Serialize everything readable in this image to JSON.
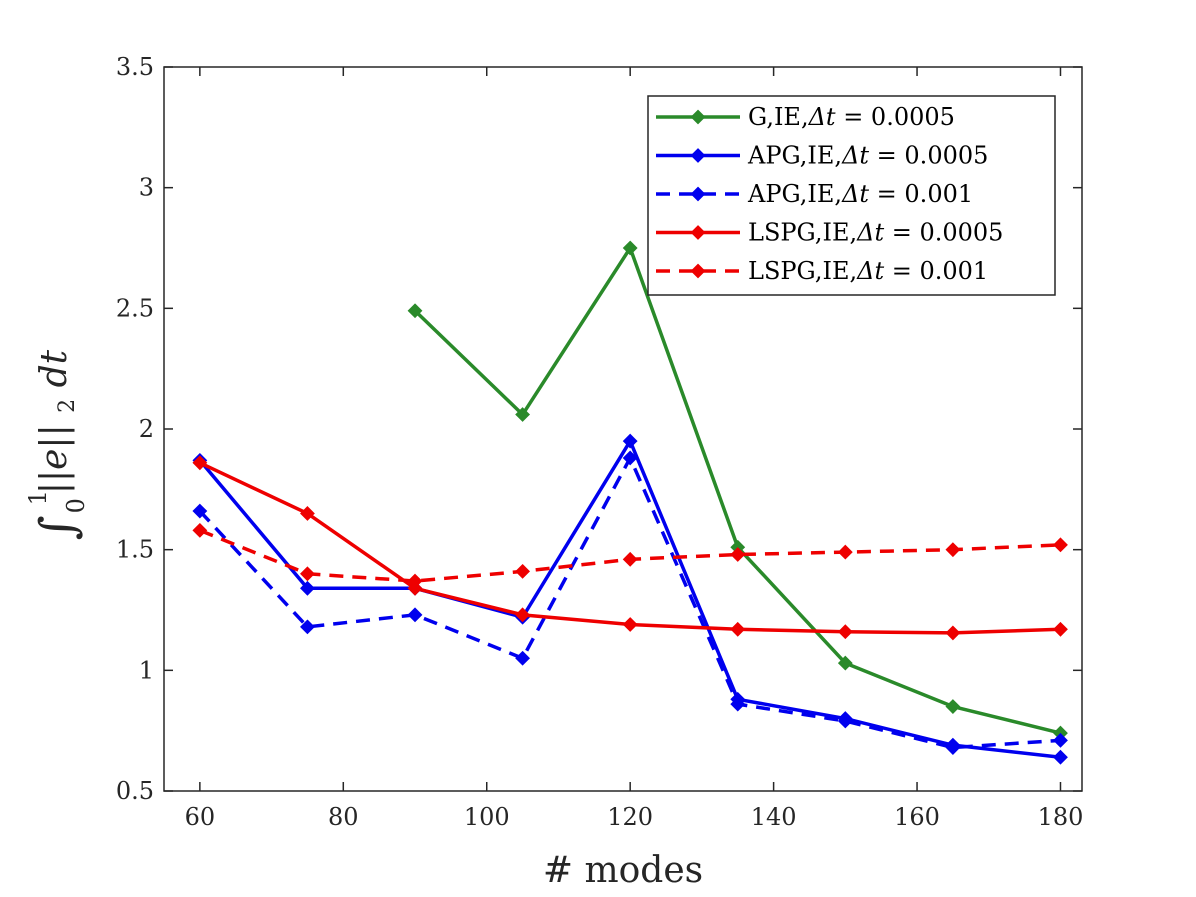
{
  "chart_data": {
    "type": "line",
    "title": "",
    "xlabel": "# modes",
    "ylabel": "∫₀¹ ||e||₂dt",
    "ylabel_parts": {
      "integral": "∫",
      "lower": "0",
      "upper": "1",
      "body": "||e||",
      "sub": "2",
      "tail": "dt"
    },
    "xlim": [
      55,
      183
    ],
    "ylim": [
      0.5,
      3.5
    ],
    "x_ticks": [
      60,
      80,
      100,
      120,
      140,
      160,
      180
    ],
    "y_ticks": [
      0.5,
      1,
      1.5,
      2,
      2.5,
      3,
      3.5
    ],
    "x_tick_labels": [
      "60",
      "80",
      "100",
      "120",
      "140",
      "160",
      "180"
    ],
    "y_tick_labels": [
      "0.5",
      "1",
      "1.5",
      "2",
      "2.5",
      "3",
      "3.5"
    ],
    "grid": false,
    "legend_position": "top-right",
    "series": [
      {
        "name": "G,IE,Δt = 0.0005",
        "label_parts": {
          "scheme": "G,IE,",
          "dt": "Δt",
          "value": " = 0.0005"
        },
        "color": "#2a8a2a",
        "dashed": false,
        "x": [
          90,
          105,
          120,
          135,
          150,
          165,
          180
        ],
        "y": [
          2.49,
          2.06,
          2.75,
          1.51,
          1.03,
          0.85,
          0.74
        ]
      },
      {
        "name": "APG,IE,Δt = 0.0005",
        "label_parts": {
          "scheme": "APG,IE,",
          "dt": "Δt",
          "value": " = 0.0005"
        },
        "color": "#0000ee",
        "dashed": false,
        "x": [
          60,
          75,
          90,
          105,
          120,
          135,
          150,
          165,
          180
        ],
        "y": [
          1.87,
          1.34,
          1.34,
          1.22,
          1.95,
          0.88,
          0.8,
          0.69,
          0.64
        ]
      },
      {
        "name": "APG,IE,Δt = 0.001",
        "label_parts": {
          "scheme": "APG,IE,",
          "dt": "Δt",
          "value": " = 0.001"
        },
        "color": "#0000ee",
        "dashed": true,
        "x": [
          60,
          75,
          90,
          105,
          120,
          135,
          150,
          165,
          180
        ],
        "y": [
          1.66,
          1.18,
          1.23,
          1.05,
          1.88,
          0.86,
          0.79,
          0.68,
          0.71
        ]
      },
      {
        "name": "LSPG,IE,Δt = 0.0005",
        "label_parts": {
          "scheme": "LSPG,IE,",
          "dt": "Δt",
          "value": " = 0.0005"
        },
        "color": "#ee0000",
        "dashed": false,
        "x": [
          60,
          75,
          90,
          105,
          120,
          135,
          150,
          165,
          180
        ],
        "y": [
          1.86,
          1.65,
          1.34,
          1.23,
          1.19,
          1.17,
          1.16,
          1.155,
          1.17
        ]
      },
      {
        "name": "LSPG,IE,Δt = 0.001",
        "label_parts": {
          "scheme": "LSPG,IE,",
          "dt": "Δt",
          "value": " = 0.001"
        },
        "color": "#ee0000",
        "dashed": true,
        "x": [
          60,
          75,
          90,
          105,
          120,
          135,
          150,
          165,
          180
        ],
        "y": [
          1.58,
          1.4,
          1.37,
          1.41,
          1.46,
          1.48,
          1.49,
          1.5,
          1.52
        ]
      }
    ]
  }
}
